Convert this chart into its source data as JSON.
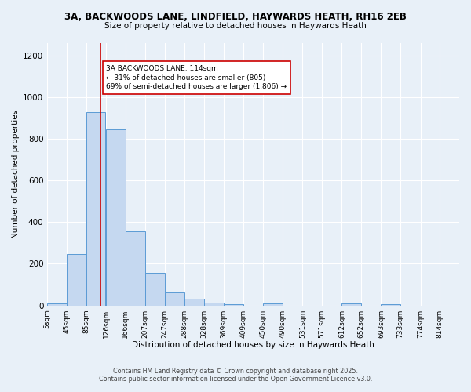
{
  "title_line1": "3A, BACKWOODS LANE, LINDFIELD, HAYWARDS HEATH, RH16 2EB",
  "title_line2": "Size of property relative to detached houses in Haywards Heath",
  "xlabel": "Distribution of detached houses by size in Haywards Heath",
  "ylabel": "Number of detached properties",
  "bin_labels": [
    "5sqm",
    "45sqm",
    "85sqm",
    "126sqm",
    "166sqm",
    "207sqm",
    "247sqm",
    "288sqm",
    "328sqm",
    "369sqm",
    "409sqm",
    "450sqm",
    "490sqm",
    "531sqm",
    "571sqm",
    "612sqm",
    "652sqm",
    "693sqm",
    "733sqm",
    "774sqm",
    "814sqm"
  ],
  "bin_edges": [
    5,
    45,
    85,
    126,
    166,
    207,
    247,
    288,
    328,
    369,
    409,
    450,
    490,
    531,
    571,
    612,
    652,
    693,
    733,
    774,
    814
  ],
  "bar_heights": [
    8,
    248,
    930,
    845,
    358,
    157,
    62,
    33,
    12,
    7,
    0,
    10,
    0,
    0,
    0,
    8,
    0,
    5,
    0,
    0,
    0
  ],
  "bar_color": "#c5d8f0",
  "bar_edge_color": "#5b9bd5",
  "property_size": 114,
  "vline_color": "#cc0000",
  "annotation_text": "3A BACKWOODS LANE: 114sqm\n← 31% of detached houses are smaller (805)\n69% of semi-detached houses are larger (1,806) →",
  "annotation_box_color": "#ffffff",
  "annotation_box_edge": "#cc0000",
  "ylim": [
    0,
    1260
  ],
  "background_color": "#e8f0f8",
  "grid_color": "#ffffff",
  "footer_line1": "Contains HM Land Registry data © Crown copyright and database right 2025.",
  "footer_line2": "Contains public sector information licensed under the Open Government Licence v3.0."
}
